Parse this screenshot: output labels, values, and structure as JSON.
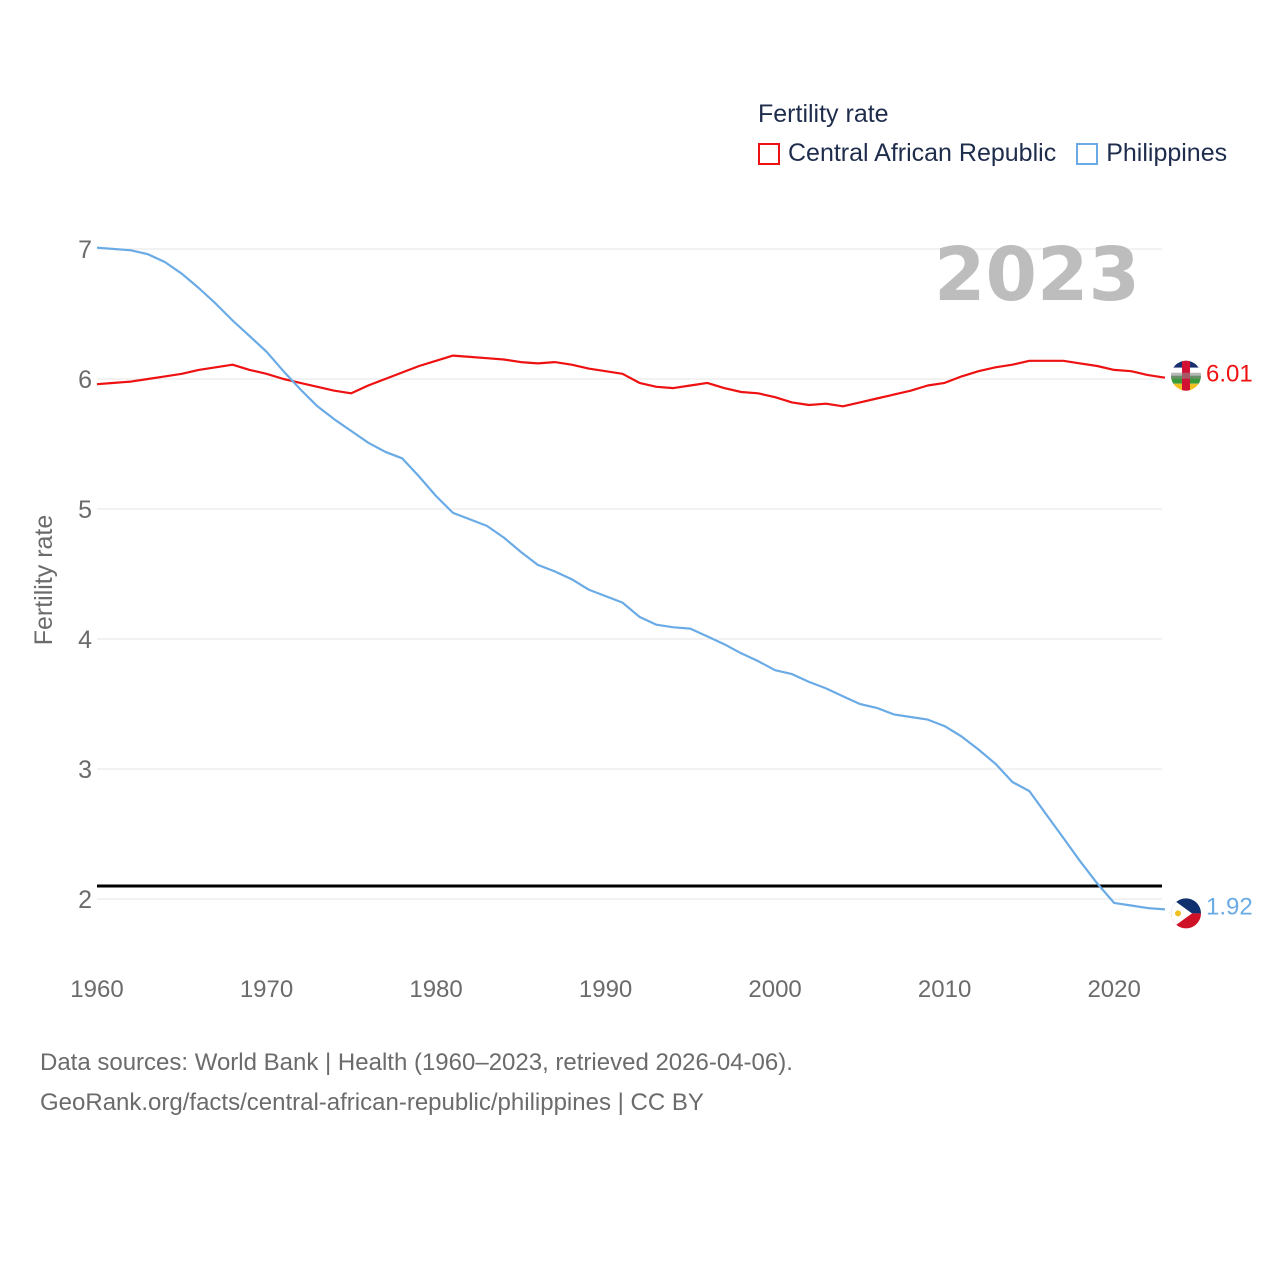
{
  "colors": {
    "car": "#ee1111",
    "phl": "#6aabe6",
    "ref_line": "#000000"
  },
  "legend": {
    "title": "Fertility rate",
    "items": [
      {
        "label": "Central African Republic"
      },
      {
        "label": "Philippines"
      }
    ]
  },
  "footer": {
    "line1": "Data sources: World Bank | Health (1960–2023, retrieved 2026-04-06).",
    "line2": "GeoRank.org/facts/central-african-republic/philippines | CC BY"
  },
  "chart_data": {
    "type": "line",
    "title": "Fertility rate",
    "current_year_label": "2023",
    "xlabel": "",
    "ylabel": "Fertility rate",
    "xlim": [
      1960,
      2023
    ],
    "ylim": [
      1.5,
      7
    ],
    "x_ticks": [
      1960,
      1970,
      1980,
      1990,
      2000,
      2010,
      2020
    ],
    "y_ticks": [
      2,
      3,
      4,
      5,
      6,
      7
    ],
    "reference_line": 2.1,
    "x": [
      1960,
      1961,
      1962,
      1963,
      1964,
      1965,
      1966,
      1967,
      1968,
      1969,
      1970,
      1971,
      1972,
      1973,
      1974,
      1975,
      1976,
      1977,
      1978,
      1979,
      1980,
      1981,
      1982,
      1983,
      1984,
      1985,
      1986,
      1987,
      1988,
      1989,
      1990,
      1991,
      1992,
      1993,
      1994,
      1995,
      1996,
      1997,
      1998,
      1999,
      2000,
      2001,
      2002,
      2003,
      2004,
      2005,
      2006,
      2007,
      2008,
      2009,
      2010,
      2011,
      2012,
      2013,
      2014,
      2015,
      2016,
      2017,
      2018,
      2019,
      2020,
      2021,
      2022,
      2023
    ],
    "series": [
      {
        "name": "Central African Republic",
        "end_label": "6.01",
        "values": [
          5.96,
          5.97,
          5.98,
          6.0,
          6.02,
          6.04,
          6.07,
          6.09,
          6.11,
          6.07,
          6.04,
          6.0,
          5.97,
          5.94,
          5.91,
          5.89,
          5.95,
          6.0,
          6.05,
          6.1,
          6.14,
          6.18,
          6.17,
          6.16,
          6.15,
          6.13,
          6.12,
          6.13,
          6.11,
          6.08,
          6.06,
          6.04,
          5.97,
          5.94,
          5.93,
          5.95,
          5.97,
          5.93,
          5.9,
          5.89,
          5.86,
          5.82,
          5.8,
          5.81,
          5.79,
          5.82,
          5.85,
          5.88,
          5.91,
          5.95,
          5.97,
          6.02,
          6.06,
          6.09,
          6.11,
          6.14,
          6.14,
          6.14,
          6.12,
          6.1,
          6.07,
          6.06,
          6.03,
          6.01
        ]
      },
      {
        "name": "Philippines",
        "end_label": "1.92",
        "values": [
          7.01,
          7.0,
          6.99,
          6.96,
          6.9,
          6.81,
          6.7,
          6.58,
          6.45,
          6.33,
          6.21,
          6.06,
          5.92,
          5.79,
          5.69,
          5.6,
          5.51,
          5.44,
          5.39,
          5.25,
          5.1,
          4.97,
          4.92,
          4.87,
          4.78,
          4.67,
          4.57,
          4.52,
          4.46,
          4.38,
          4.33,
          4.28,
          4.17,
          4.11,
          4.09,
          4.08,
          4.02,
          3.96,
          3.89,
          3.83,
          3.76,
          3.73,
          3.67,
          3.62,
          3.56,
          3.5,
          3.47,
          3.42,
          3.4,
          3.38,
          3.33,
          3.25,
          3.15,
          3.04,
          2.9,
          2.83,
          2.65,
          2.47,
          2.29,
          2.12,
          1.97,
          1.95,
          1.93,
          1.92
        ]
      }
    ]
  }
}
